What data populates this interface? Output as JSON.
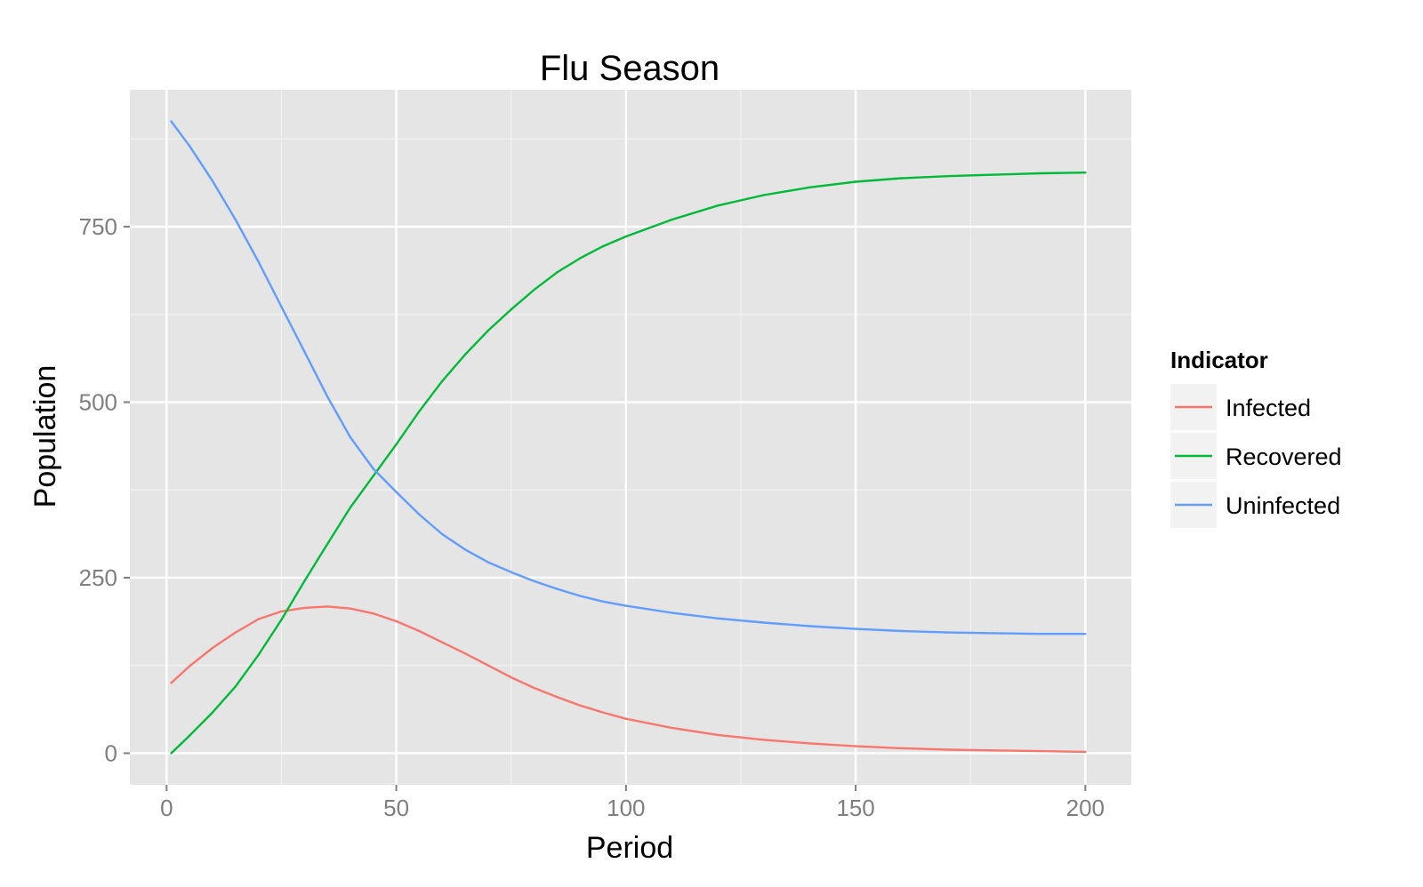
{
  "chart_data": {
    "type": "line",
    "title": "Flu Season",
    "xlabel": "Period",
    "ylabel": "Population",
    "xlim": [
      -8,
      210
    ],
    "ylim": [
      -45,
      945
    ],
    "x_ticks": [
      0,
      50,
      100,
      150,
      200
    ],
    "x_tick_labels": [
      "0",
      "50",
      "100",
      "150",
      "200"
    ],
    "y_ticks": [
      0,
      250,
      500,
      750
    ],
    "y_tick_labels": [
      "0",
      "250",
      "500",
      "750"
    ],
    "grid": true,
    "panel_background": "#e5e5e5",
    "grid_color": "#ffffff",
    "legend": {
      "title": "Indicator",
      "position": "right"
    },
    "x": [
      1,
      5,
      10,
      15,
      20,
      25,
      30,
      35,
      40,
      45,
      50,
      55,
      60,
      65,
      70,
      75,
      80,
      85,
      90,
      95,
      100,
      110,
      120,
      130,
      140,
      150,
      160,
      170,
      180,
      190,
      200
    ],
    "series": [
      {
        "name": "Infected",
        "color": "#f8766d",
        "values": [
          100,
          124,
          150,
          172,
          191,
          202,
          207,
          209,
          206,
          199,
          188,
          174,
          158,
          142,
          125,
          108,
          93,
          80,
          68,
          58,
          49,
          36,
          26,
          19,
          14,
          10,
          7,
          5,
          4,
          3,
          2
        ]
      },
      {
        "name": "Recovered",
        "color": "#00ba38",
        "values": [
          0,
          25,
          58,
          95,
          140,
          190,
          245,
          298,
          350,
          395,
          440,
          487,
          530,
          568,
          602,
          632,
          660,
          685,
          705,
          722,
          736,
          760,
          780,
          795,
          806,
          814,
          819,
          822,
          824,
          826,
          827
        ]
      },
      {
        "name": "Uninfected",
        "color": "#619cff",
        "values": [
          900,
          865,
          815,
          760,
          700,
          636,
          572,
          508,
          450,
          405,
          372,
          340,
          312,
          290,
          272,
          258,
          245,
          234,
          224,
          216,
          210,
          200,
          192,
          186,
          181,
          177,
          174,
          172,
          171,
          170,
          170
        ]
      }
    ]
  }
}
